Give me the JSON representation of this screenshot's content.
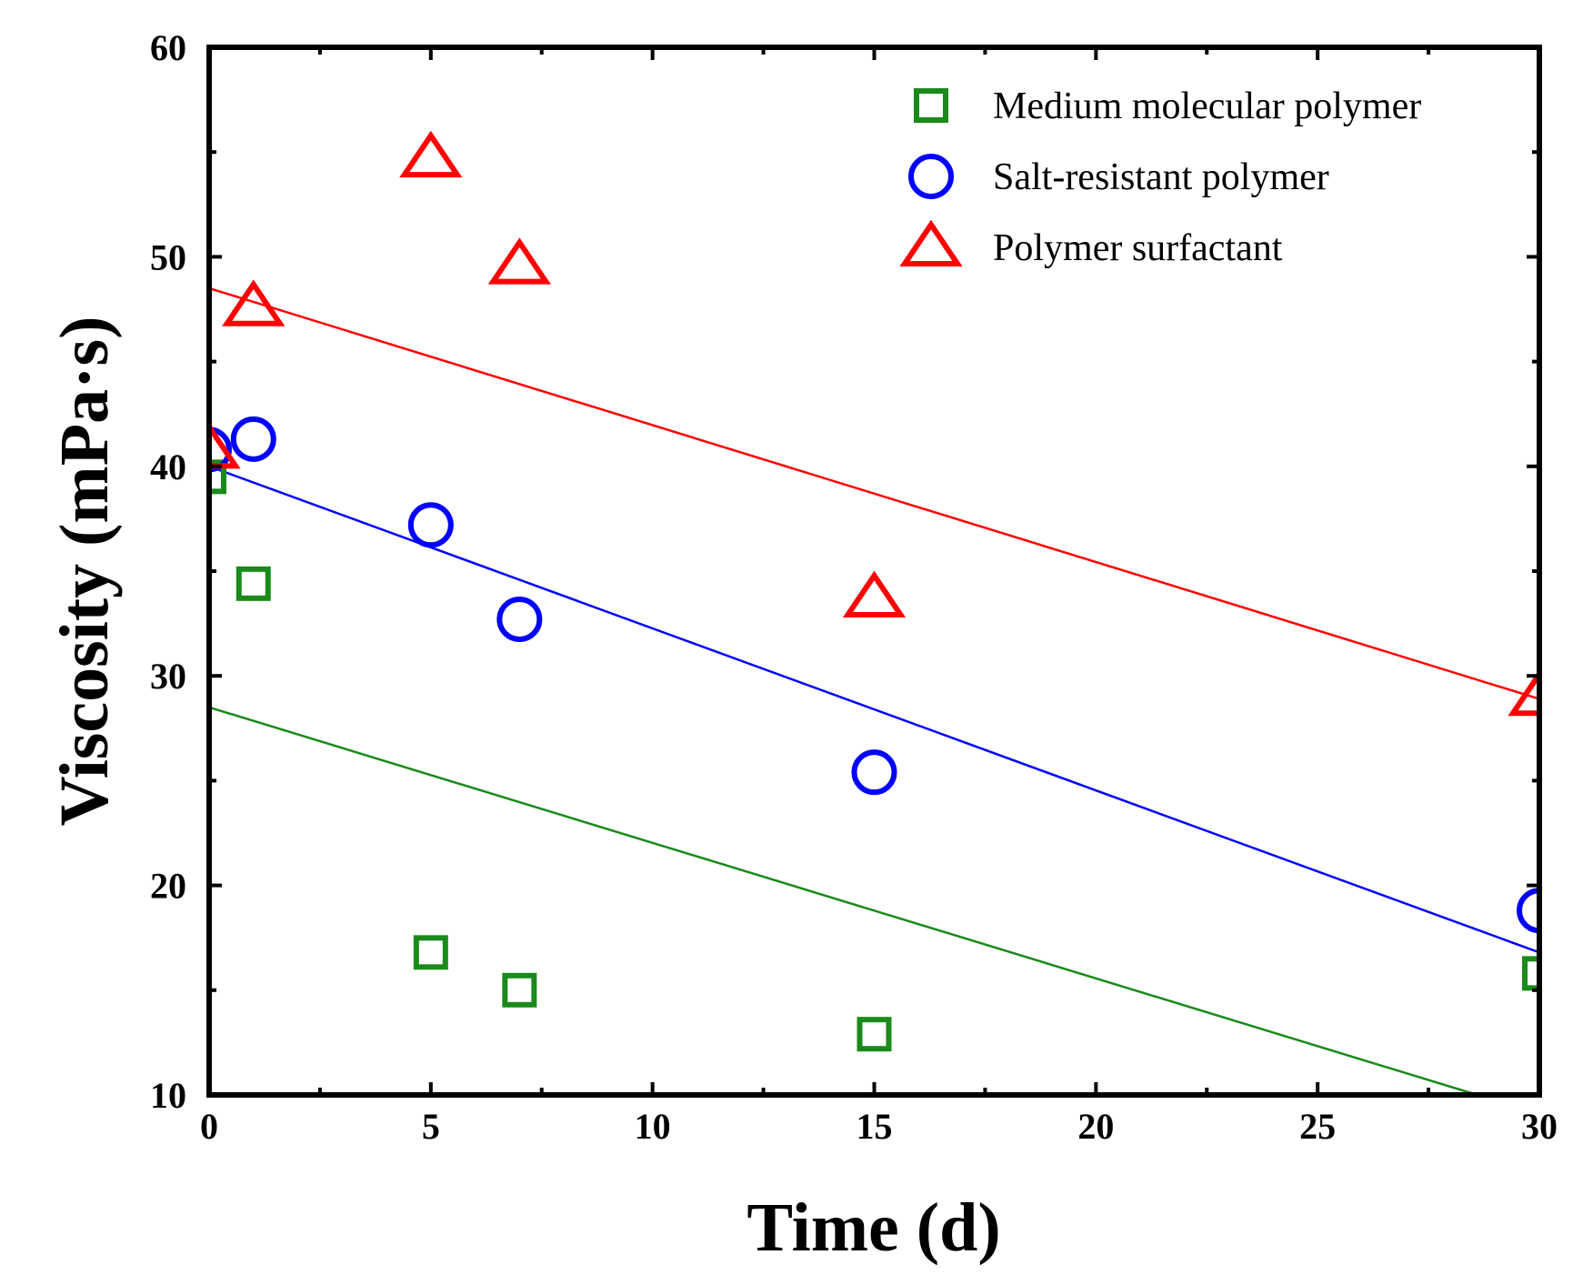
{
  "chart_data": {
    "type": "scatter",
    "title": "",
    "xlabel": "Time (d)",
    "ylabel": "Viscosity (mPa·s)",
    "xlim": [
      0,
      30
    ],
    "ylim": [
      10,
      60
    ],
    "xticks": [
      0,
      5,
      10,
      15,
      20,
      25,
      30
    ],
    "yticks": [
      10,
      20,
      30,
      40,
      50,
      60
    ],
    "grid": false,
    "legend_position": "top-right",
    "series": [
      {
        "name": "Medium molecular polymer",
        "marker": "square",
        "color": "#1a8a1a",
        "x": [
          0,
          1,
          5,
          7,
          15,
          30
        ],
        "y": [
          39.5,
          34.4,
          16.8,
          15.0,
          12.9,
          15.8
        ],
        "fit": {
          "x": [
            0,
            28.6
          ],
          "y": [
            28.5,
            10.0
          ]
        }
      },
      {
        "name": "Salt-resistant polymer",
        "marker": "circle",
        "color": "#0000ff",
        "x": [
          0,
          1,
          5,
          7,
          15,
          30
        ],
        "y": [
          40.8,
          41.3,
          37.2,
          32.7,
          25.4,
          18.8
        ],
        "fit": {
          "x": [
            0,
            30
          ],
          "y": [
            40.0,
            16.8
          ]
        }
      },
      {
        "name": "Polymer surfactant",
        "marker": "triangle",
        "color": "#ff0000",
        "x": [
          0,
          1,
          5,
          7,
          15,
          30
        ],
        "y": [
          40.8,
          47.6,
          54.7,
          49.6,
          33.7,
          29.0
        ],
        "fit": {
          "x": [
            0,
            30
          ],
          "y": [
            48.5,
            28.9
          ]
        }
      }
    ]
  }
}
